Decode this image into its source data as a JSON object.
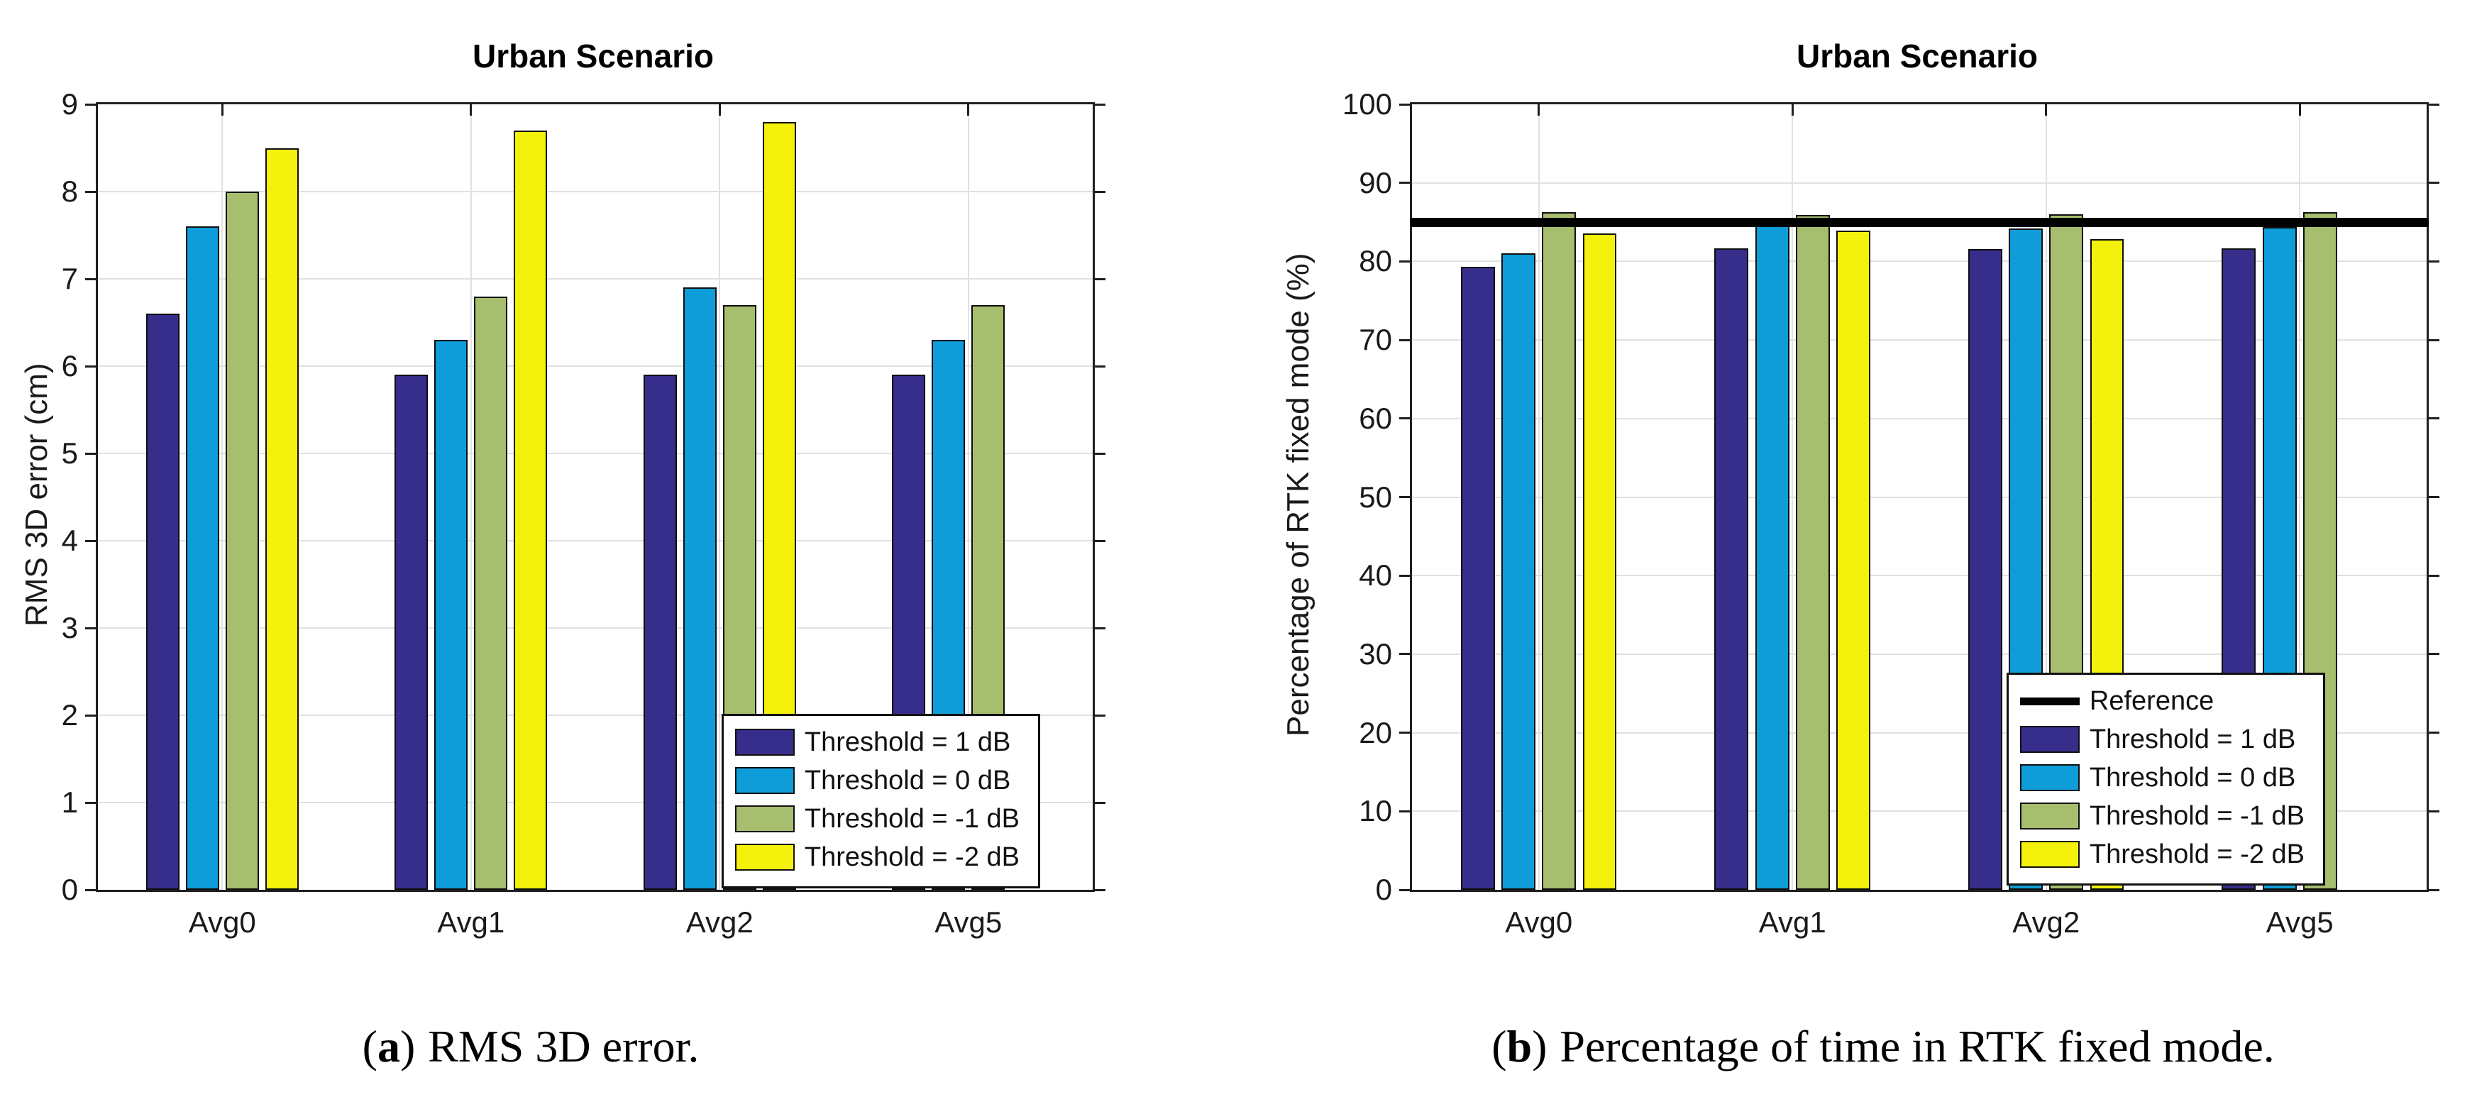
{
  "figure": {
    "background": "#ffffff",
    "grid_color": "#e1e1e1",
    "axis_color": "#1f1f1f"
  },
  "chart_data": [
    {
      "id": "a",
      "type": "bar",
      "title": "Urban Scenario",
      "ylabel": "RMS 3D error (cm)",
      "xlabel": "",
      "categories": [
        "Avg0",
        "Avg1",
        "Avg2",
        "Avg5"
      ],
      "ylim": [
        0,
        9
      ],
      "yticks": [
        0,
        1,
        2,
        3,
        4,
        5,
        6,
        7,
        8,
        9
      ],
      "grid": true,
      "legend_position": "southeast",
      "series": [
        {
          "name": "Threshold = 1 dB",
          "color": "#372D8A",
          "values": [
            6.6,
            5.9,
            5.9,
            5.9
          ]
        },
        {
          "name": "Threshold = 0 dB",
          "color": "#0E9DD9",
          "values": [
            7.6,
            6.3,
            6.9,
            6.3
          ]
        },
        {
          "name": "Threshold = -1 dB",
          "color": "#A6BE6E",
          "values": [
            8.0,
            6.8,
            6.7,
            6.7
          ]
        },
        {
          "name": "Threshold = -2 dB",
          "color": "#F4F10D",
          "values": [
            8.5,
            8.7,
            8.8,
            null
          ]
        }
      ],
      "caption": {
        "prefix": "(",
        "label": "a",
        "suffix": ")",
        "text": "RMS 3D error."
      }
    },
    {
      "id": "b",
      "type": "bar",
      "title": "Urban Scenario",
      "ylabel": "Percentage of RTK fixed mode (%)",
      "xlabel": "",
      "categories": [
        "Avg0",
        "Avg1",
        "Avg2",
        "Avg5"
      ],
      "ylim": [
        0,
        100
      ],
      "yticks": [
        0,
        10,
        20,
        30,
        40,
        50,
        60,
        70,
        80,
        90,
        100
      ],
      "grid": true,
      "legend_position": "southeast",
      "reference": {
        "label": "Reference",
        "value": 85,
        "color": "#000000"
      },
      "series": [
        {
          "name": "Threshold = 1 dB",
          "color": "#372D8A",
          "values": [
            79.3,
            81.7,
            81.6,
            81.7
          ]
        },
        {
          "name": "Threshold = 0 dB",
          "color": "#0E9DD9",
          "values": [
            81.0,
            84.6,
            84.2,
            84.4
          ]
        },
        {
          "name": "Threshold = -1 dB",
          "color": "#A6BE6E",
          "values": [
            86.3,
            85.9,
            86.0,
            86.3
          ]
        },
        {
          "name": "Threshold = -2 dB",
          "color": "#F4F10D",
          "values": [
            83.6,
            83.9,
            82.8,
            null
          ]
        }
      ],
      "caption": {
        "prefix": "(",
        "label": "b",
        "suffix": ")",
        "text": "Percentage of time in RTK fixed mode."
      }
    }
  ]
}
